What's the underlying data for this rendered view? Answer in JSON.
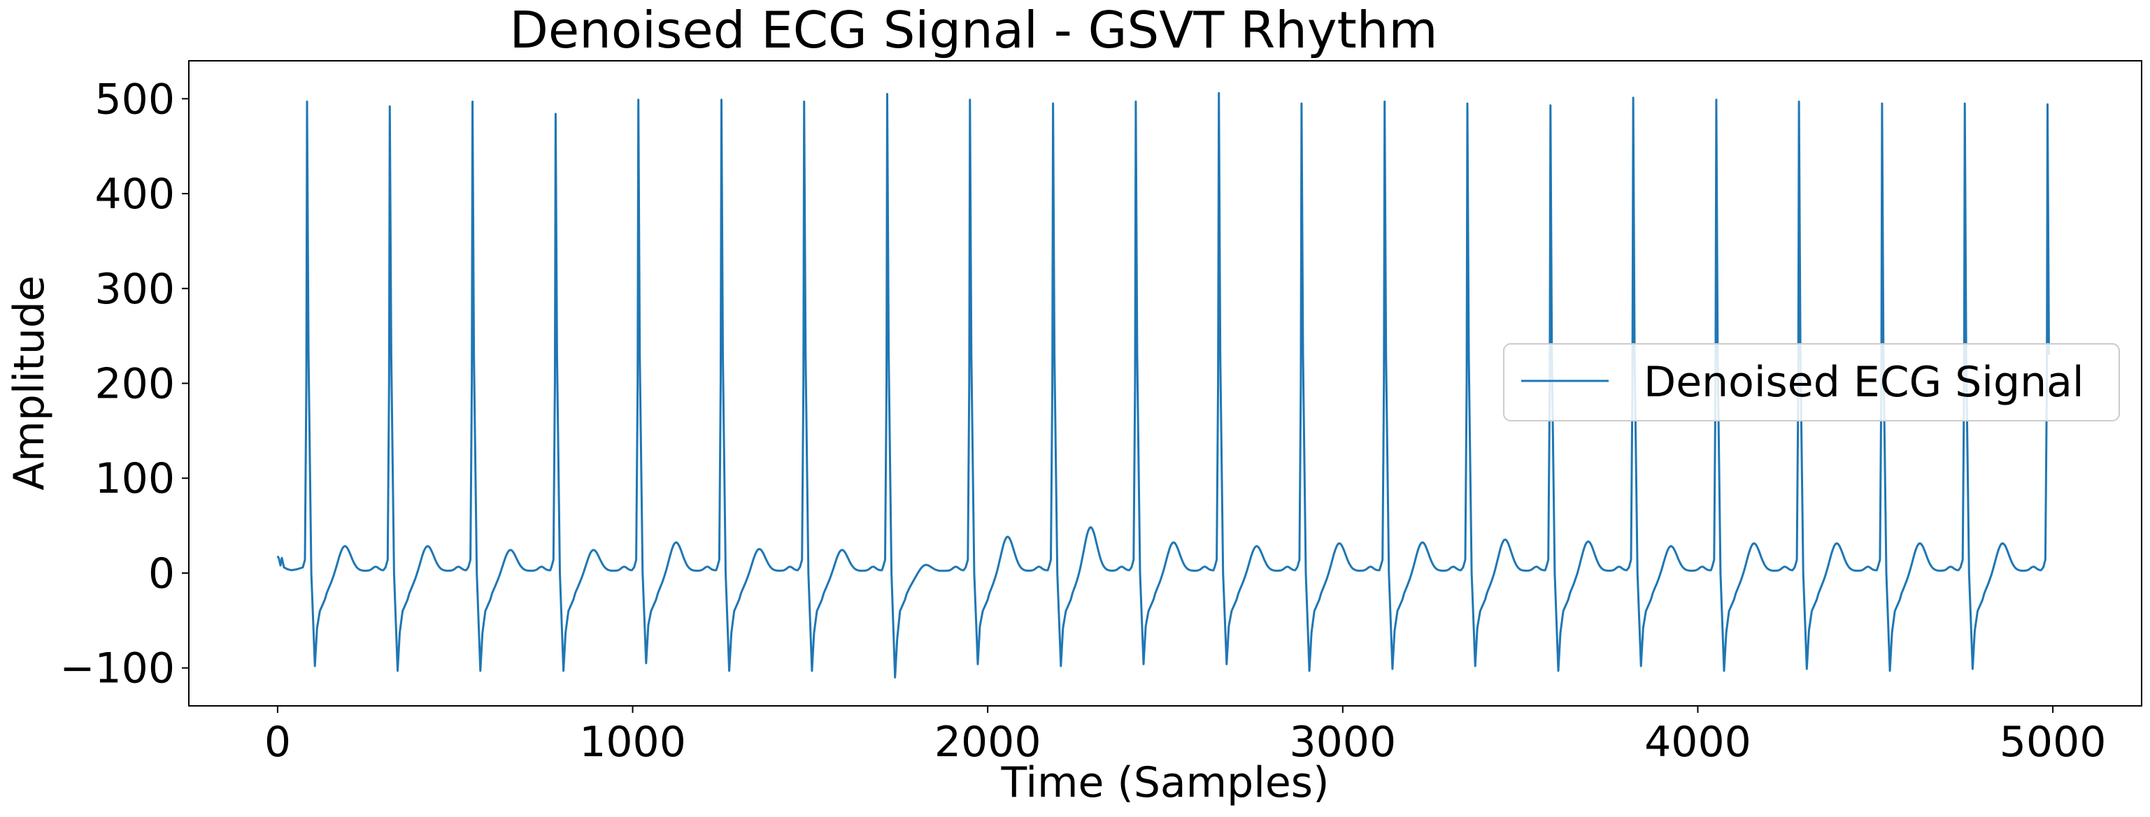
{
  "chart_data": {
    "type": "line",
    "title": "Denoised ECG Signal - GSVT Rhythm",
    "xlabel": "Time (Samples)",
    "ylabel": "Amplitude",
    "xlim": [
      -250,
      5250
    ],
    "ylim": [
      -140,
      540
    ],
    "x_ticks": [
      0,
      1000,
      2000,
      3000,
      4000,
      5000
    ],
    "x_tick_labels": [
      "0",
      "1000",
      "2000",
      "3000",
      "4000",
      "5000"
    ],
    "y_ticks": [
      -100,
      0,
      100,
      200,
      300,
      400,
      500
    ],
    "y_tick_labels": [
      "−100",
      "0",
      "100",
      "200",
      "300",
      "400",
      "500"
    ],
    "grid": false,
    "legend": {
      "position": "center-right",
      "entries": [
        "Denoised ECG Signal"
      ]
    },
    "series": [
      {
        "name": "Denoised ECG Signal",
        "color": "#1f77b4",
        "beats": [
          {
            "r": 83,
            "peak": 497,
            "s": -98,
            "t": 30
          },
          {
            "r": 316,
            "peak": 492,
            "s": -103,
            "t": 30
          },
          {
            "r": 549,
            "peak": 497,
            "s": -103,
            "t": 26
          },
          {
            "r": 783,
            "peak": 484,
            "s": -103,
            "t": 26
          },
          {
            "r": 1016,
            "peak": 499,
            "s": -95,
            "t": 34
          },
          {
            "r": 1250,
            "peak": 499,
            "s": -103,
            "t": 27
          },
          {
            "r": 1483,
            "peak": 497,
            "s": -103,
            "t": 26
          },
          {
            "r": 1717,
            "peak": 505,
            "s": -110,
            "t": 10
          },
          {
            "r": 1950,
            "peak": 499,
            "s": -96,
            "t": 40
          },
          {
            "r": 2184,
            "peak": 495,
            "s": -98,
            "t": 50
          },
          {
            "r": 2417,
            "peak": 497,
            "s": -96,
            "t": 34
          },
          {
            "r": 2651,
            "peak": 506,
            "s": -96,
            "t": 30
          },
          {
            "r": 2884,
            "peak": 495,
            "s": -103,
            "t": 33
          },
          {
            "r": 3118,
            "peak": 497,
            "s": -101,
            "t": 34
          },
          {
            "r": 3351,
            "peak": 495,
            "s": -98,
            "t": 37
          },
          {
            "r": 3585,
            "peak": 493,
            "s": -103,
            "t": 35
          },
          {
            "r": 3818,
            "peak": 501,
            "s": -98,
            "t": 30
          },
          {
            "r": 4052,
            "peak": 499,
            "s": -103,
            "t": 33
          },
          {
            "r": 4285,
            "peak": 497,
            "s": -101,
            "t": 33
          },
          {
            "r": 4519,
            "peak": 495,
            "s": -103,
            "t": 33
          },
          {
            "r": 4752,
            "peak": 495,
            "s": -101,
            "t": 33
          },
          {
            "r": 4985,
            "peak": 494,
            "s": null,
            "t": null
          }
        ]
      }
    ]
  }
}
